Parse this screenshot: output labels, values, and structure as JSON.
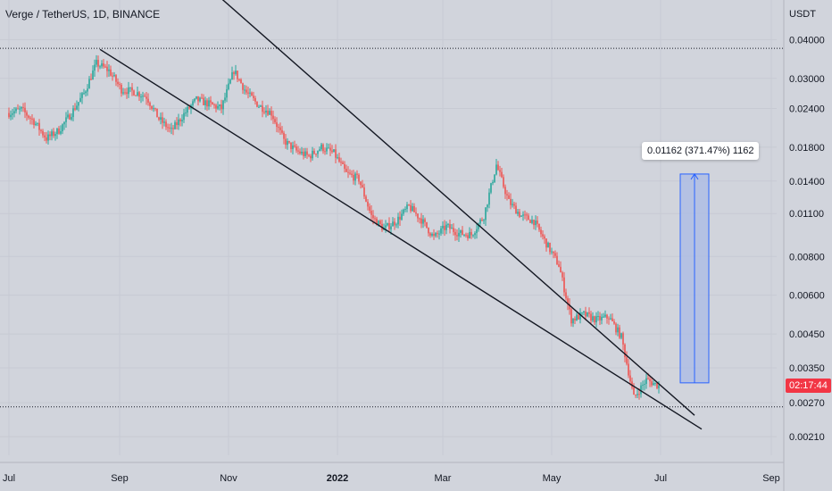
{
  "header": {
    "title": "Verge / TetherUS, 1D, BINANCE",
    "currency": "USDT"
  },
  "price_tag": {
    "label": "02:17:44",
    "value": 0.00306,
    "color": "#f23645"
  },
  "measure": {
    "label": "0.01162 (371.47%) 1162",
    "from": 0.00313,
    "to": 0.01475
  },
  "colors": {
    "up": "#26a69a",
    "down": "#ef5350",
    "background": "#d1d4dc",
    "trend": "#131722",
    "measure_fill": "#aabbe6",
    "measure_line": "#2962ff"
  },
  "chart_data": {
    "type": "candlestick",
    "title": "Verge / TetherUS, 1D, BINANCE",
    "scale": "log",
    "ylim": [
      0.00185,
      0.0445
    ],
    "y_ticks": [
      "0.04000",
      "0.03000",
      "0.02400",
      "0.01800",
      "0.01400",
      "0.01100",
      "0.00800",
      "0.00600",
      "0.00450",
      "0.00350",
      "0.00270",
      "0.00210"
    ],
    "x_ticks": [
      {
        "label": "Jul",
        "date": "2021-07-01",
        "bold": false
      },
      {
        "label": "Sep",
        "date": "2021-09-01",
        "bold": false
      },
      {
        "label": "Nov",
        "date": "2021-11-01",
        "bold": false
      },
      {
        "label": "2022",
        "date": "2022-01-01",
        "bold": true
      },
      {
        "label": "Mar",
        "date": "2022-03-01",
        "bold": false
      },
      {
        "label": "May",
        "date": "2022-05-01",
        "bold": false
      },
      {
        "label": "Jul",
        "date": "2022-07-01",
        "bold": false
      },
      {
        "label": "Sep",
        "date": "2022-09-01",
        "bold": false
      }
    ],
    "start_date": "2021-07-01",
    "series": [
      {
        "date": "2021-07-01",
        "close": 0.0232
      },
      {
        "date": "2021-07-08",
        "close": 0.0238
      },
      {
        "date": "2021-07-15",
        "close": 0.0218
      },
      {
        "date": "2021-07-22",
        "close": 0.0192
      },
      {
        "date": "2021-07-29",
        "close": 0.0204
      },
      {
        "date": "2021-08-05",
        "close": 0.0232
      },
      {
        "date": "2021-08-12",
        "close": 0.0268
      },
      {
        "date": "2021-08-19",
        "close": 0.0335
      },
      {
        "date": "2021-08-26",
        "close": 0.0318
      },
      {
        "date": "2021-09-02",
        "close": 0.0276
      },
      {
        "date": "2021-09-09",
        "close": 0.0272
      },
      {
        "date": "2021-09-16",
        "close": 0.0262
      },
      {
        "date": "2021-09-23",
        "close": 0.0222
      },
      {
        "date": "2021-09-30",
        "close": 0.0203
      },
      {
        "date": "2021-10-07",
        "close": 0.023
      },
      {
        "date": "2021-10-14",
        "close": 0.0256
      },
      {
        "date": "2021-10-21",
        "close": 0.0248
      },
      {
        "date": "2021-10-28",
        "close": 0.024
      },
      {
        "date": "2021-11-04",
        "close": 0.0318
      },
      {
        "date": "2021-11-11",
        "close": 0.027
      },
      {
        "date": "2021-11-18",
        "close": 0.0245
      },
      {
        "date": "2021-11-25",
        "close": 0.0232
      },
      {
        "date": "2021-12-02",
        "close": 0.0189
      },
      {
        "date": "2021-12-09",
        "close": 0.0175
      },
      {
        "date": "2021-12-16",
        "close": 0.0168
      },
      {
        "date": "2021-12-23",
        "close": 0.018
      },
      {
        "date": "2021-12-30",
        "close": 0.0172
      },
      {
        "date": "2022-01-06",
        "close": 0.0148
      },
      {
        "date": "2022-01-13",
        "close": 0.0142
      },
      {
        "date": "2022-01-20",
        "close": 0.0108
      },
      {
        "date": "2022-01-27",
        "close": 0.0098
      },
      {
        "date": "2022-02-03",
        "close": 0.0104
      },
      {
        "date": "2022-02-10",
        "close": 0.0116
      },
      {
        "date": "2022-02-17",
        "close": 0.0105
      },
      {
        "date": "2022-02-24",
        "close": 0.0092
      },
      {
        "date": "2022-03-03",
        "close": 0.01
      },
      {
        "date": "2022-03-10",
        "close": 0.0095
      },
      {
        "date": "2022-03-17",
        "close": 0.0094
      },
      {
        "date": "2022-03-24",
        "close": 0.0108
      },
      {
        "date": "2022-03-31",
        "close": 0.0158
      },
      {
        "date": "2022-04-07",
        "close": 0.012
      },
      {
        "date": "2022-04-14",
        "close": 0.0108
      },
      {
        "date": "2022-04-21",
        "close": 0.0104
      },
      {
        "date": "2022-04-28",
        "close": 0.0088
      },
      {
        "date": "2022-05-05",
        "close": 0.0075
      },
      {
        "date": "2022-05-12",
        "close": 0.005
      },
      {
        "date": "2022-05-19",
        "close": 0.0052
      },
      {
        "date": "2022-05-26",
        "close": 0.005
      },
      {
        "date": "2022-06-02",
        "close": 0.0051
      },
      {
        "date": "2022-06-09",
        "close": 0.0044
      },
      {
        "date": "2022-06-16",
        "close": 0.0028
      },
      {
        "date": "2022-06-23",
        "close": 0.0032
      },
      {
        "date": "2022-06-30",
        "close": 0.00306
      }
    ],
    "levels": [
      0.0375,
      0.00262
    ],
    "trendlines": [
      {
        "from": [
          "2021-08-21",
          0.0372
        ],
        "to": [
          "2022-07-24",
          0.00222
        ]
      },
      {
        "from": [
          "2021-09-28",
          0.077
        ],
        "to": [
          "2022-07-20",
          0.00246
        ]
      }
    ]
  }
}
